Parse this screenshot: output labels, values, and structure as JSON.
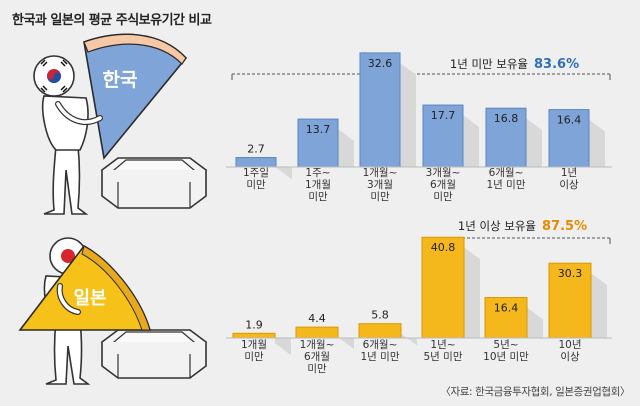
{
  "title": "한국과 일본의 평균 주식보유기간 비교",
  "source": "〈자료: 한국금융투자협회, 일본증권업협회〉",
  "colors": {
    "korea": "#7ea4d8",
    "korea_edge": "#5a86c4",
    "japan": "#f4b71c",
    "japan_edge": "#d99a00",
    "accent_blue": "#2f6fb8",
    "accent_orange": "#e88a00"
  },
  "chart_data": [
    {
      "type": "bar",
      "country": "한국",
      "categories": [
        [
          "1주일",
          "미만"
        ],
        [
          "1주~",
          "1개월",
          "미만"
        ],
        [
          "1개월~",
          "3개월",
          "미만"
        ],
        [
          "3개월~",
          "6개월",
          "미만"
        ],
        [
          "6개월~",
          "1년 미만"
        ],
        [
          "1년",
          "이상"
        ]
      ],
      "values": [
        2.7,
        13.7,
        32.6,
        17.7,
        16.8,
        16.4
      ],
      "value_labels": [
        "2.7",
        "13.7",
        "32.6",
        "17.7",
        "16.8",
        "16.4"
      ],
      "annotation": {
        "text": "1년 미만 보유율",
        "value": "83.6%"
      }
    },
    {
      "type": "bar",
      "country": "일본",
      "categories": [
        [
          "1개월",
          "미만"
        ],
        [
          "1개월~",
          "6개월",
          "미만"
        ],
        [
          "6개월~",
          "1년 미만"
        ],
        [
          "1년~",
          "5년 미만"
        ],
        [
          "5년~",
          "10년 미만"
        ],
        [
          "10년",
          "이상"
        ]
      ],
      "values": [
        1.9,
        4.4,
        5.8,
        40.8,
        16.4,
        30.3
      ],
      "value_labels": [
        "1.9",
        "4.4",
        "5.8",
        "40.8",
        "16.4",
        "30.3"
      ],
      "annotation": {
        "text": "1년 이상 보유율",
        "value": "87.5%"
      }
    }
  ]
}
